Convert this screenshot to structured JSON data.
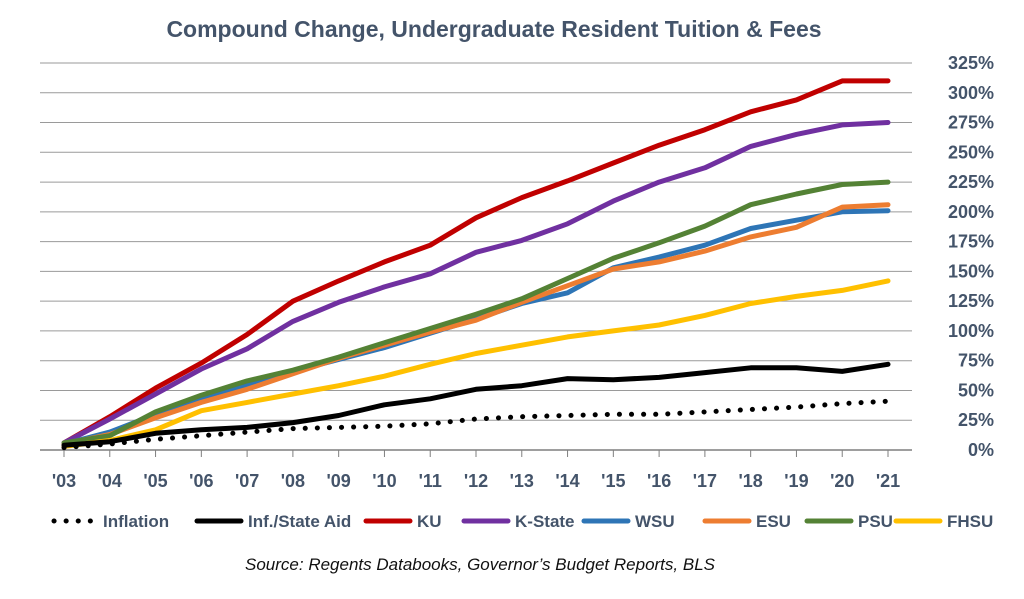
{
  "chart_data": {
    "type": "line",
    "title": "Compound Change, Undergraduate Resident Tuition & Fees",
    "source": "Source: Regents Databooks, Governor’s Budget Reports, BLS",
    "categories": [
      "'03",
      "'04",
      "'05",
      "'06",
      "'07",
      "'08",
      "'09",
      "'10",
      "'11",
      "'12",
      "'13",
      "'14",
      "'15",
      "'16",
      "'17",
      "'18",
      "'19",
      "'20",
      "'21"
    ],
    "ylim": [
      0,
      325
    ],
    "yticks": [
      0,
      25,
      50,
      75,
      100,
      125,
      150,
      175,
      200,
      225,
      250,
      275,
      300,
      325
    ],
    "ytick_labels": [
      "0%",
      "25%",
      "50%",
      "75%",
      "100%",
      "125%",
      "150%",
      "175%",
      "200%",
      "225%",
      "250%",
      "275%",
      "300%",
      "325%"
    ],
    "y_axis_side": "right",
    "grid": true,
    "legend_position": "bottom",
    "series": [
      {
        "name": "Inflation",
        "color": "#000000",
        "style": "dotted",
        "values": [
          2,
          5,
          9,
          12,
          15,
          18,
          19,
          20,
          22,
          26,
          28,
          29,
          30,
          30,
          32,
          34,
          36,
          39,
          41
        ]
      },
      {
        "name": "Inf./State Aid",
        "color": "#000000",
        "style": "solid",
        "values": [
          4,
          7,
          14,
          17,
          19,
          23,
          29,
          38,
          43,
          51,
          54,
          60,
          59,
          61,
          65,
          69,
          69,
          66,
          72
        ]
      },
      {
        "name": "KU",
        "color": "#c00000",
        "style": "solid",
        "values": [
          6,
          28,
          52,
          73,
          97,
          125,
          142,
          158,
          172,
          195,
          212,
          226,
          241,
          256,
          269,
          284,
          294,
          310,
          310
        ]
      },
      {
        "name": "K-State",
        "color": "#7030a0",
        "style": "solid",
        "values": [
          6,
          26,
          47,
          68,
          85,
          108,
          124,
          137,
          148,
          166,
          176,
          190,
          209,
          225,
          237,
          255,
          265,
          273,
          275
        ]
      },
      {
        "name": "WSU",
        "color": "#2e75b6",
        "style": "solid",
        "values": [
          5,
          15,
          30,
          44,
          55,
          66,
          76,
          86,
          98,
          110,
          123,
          132,
          153,
          162,
          172,
          186,
          193,
          200,
          201
        ]
      },
      {
        "name": "ESU",
        "color": "#ed7d31",
        "style": "solid",
        "values": [
          5,
          13,
          27,
          40,
          51,
          64,
          77,
          88,
          99,
          109,
          124,
          138,
          152,
          158,
          167,
          179,
          187,
          204,
          206
        ]
      },
      {
        "name": "PSU",
        "color": "#548235",
        "style": "solid",
        "values": [
          6,
          12,
          32,
          46,
          58,
          67,
          78,
          90,
          102,
          114,
          127,
          144,
          161,
          174,
          188,
          206,
          215,
          223,
          225
        ]
      },
      {
        "name": "FHSU",
        "color": "#ffc000",
        "style": "solid",
        "values": [
          3,
          8,
          17,
          33,
          40,
          47,
          54,
          62,
          72,
          81,
          88,
          95,
          100,
          105,
          113,
          123,
          129,
          134,
          142
        ]
      }
    ]
  }
}
